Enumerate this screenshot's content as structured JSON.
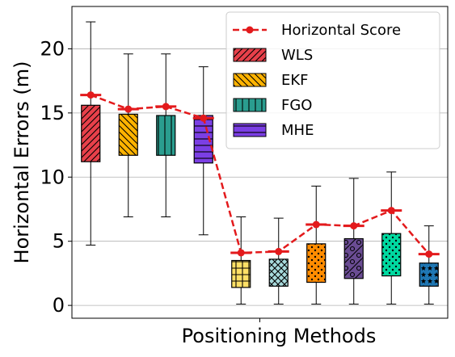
{
  "chart_data": {
    "type": "box",
    "ylabel": "Horizontal Errors (m)",
    "xlabel": "Positioning Methods",
    "ylim": [
      -1,
      23.3
    ],
    "yticks": [
      0,
      5,
      10,
      15,
      20
    ],
    "grid": true,
    "legend": "upper right",
    "boxes": [
      {
        "name": "WLS",
        "color": "#e8404a",
        "hatch": "/",
        "whislo": 4.7,
        "q1": 11.2,
        "q3": 15.6,
        "whishi": 22.1
      },
      {
        "name": "EKF",
        "color": "#ffb300",
        "hatch": "\\",
        "whislo": 6.9,
        "q1": 11.7,
        "q3": 14.9,
        "whishi": 19.6
      },
      {
        "name": "FGO",
        "color": "#2a9d8f",
        "hatch": "|",
        "whislo": 6.9,
        "q1": 11.7,
        "q3": 14.8,
        "whishi": 19.6
      },
      {
        "name": "MHE",
        "color": "#7b3fe4",
        "hatch": "-",
        "whislo": 5.5,
        "q1": 11.1,
        "q3": 14.8,
        "whishi": 18.6
      },
      {
        "color": "#ffe066",
        "hatch": "+",
        "whislo": 0.1,
        "q1": 1.4,
        "q3": 3.5,
        "whishi": 6.9
      },
      {
        "color": "#a8dadc",
        "hatch": "x",
        "whislo": 0.1,
        "q1": 1.5,
        "q3": 3.6,
        "whishi": 6.8
      },
      {
        "color": "#ff8c00",
        "hatch": ".",
        "whislo": 0.1,
        "q1": 1.8,
        "q3": 4.8,
        "whishi": 9.3
      },
      {
        "color": "#6a4c93",
        "hatch": "o/",
        "whislo": 0.1,
        "q1": 2.1,
        "q3": 5.2,
        "whishi": 9.9
      },
      {
        "color": "#00d9a0",
        "hatch": ".",
        "whislo": 0.1,
        "q1": 2.3,
        "q3": 5.6,
        "whishi": 10.4
      },
      {
        "color": "#1f77b4",
        "hatch": "*",
        "whislo": 0.1,
        "q1": 1.5,
        "q3": 3.3,
        "whishi": 6.2
      }
    ],
    "score": {
      "name": "Horizontal Score",
      "color": "#e31a1c",
      "values": [
        16.4,
        15.3,
        15.5,
        14.6,
        4.1,
        4.2,
        6.3,
        6.2,
        7.4,
        4.0
      ]
    }
  }
}
